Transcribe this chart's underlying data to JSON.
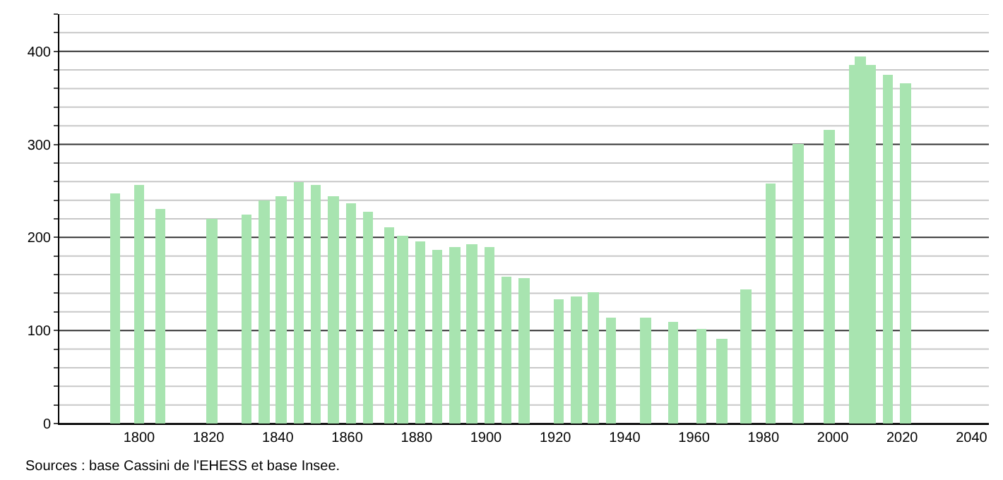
{
  "chart_data": {
    "type": "bar",
    "x": [
      1793,
      1800,
      1806,
      1821,
      1831,
      1836,
      1841,
      1846,
      1851,
      1856,
      1861,
      1866,
      1872,
      1876,
      1881,
      1886,
      1891,
      1896,
      1901,
      1906,
      1911,
      1921,
      1926,
      1931,
      1936,
      1946,
      1954,
      1962,
      1968,
      1975,
      1982,
      1990,
      1999,
      2006,
      2008,
      2011,
      2016,
      2021
    ],
    "values": [
      248,
      256,
      231,
      220,
      225,
      239,
      245,
      260,
      257,
      245,
      236,
      227,
      211,
      202,
      196,
      187,
      189,
      193,
      190,
      158,
      156,
      134,
      137,
      141,
      114,
      114,
      109,
      102,
      91,
      144,
      258,
      300,
      316,
      385,
      395,
      385,
      375,
      366
    ],
    "color": "#a8e4b0",
    "xlim": [
      1777,
      2045
    ],
    "xticks": [
      1800,
      1820,
      1840,
      1860,
      1880,
      1900,
      1920,
      1940,
      1960,
      1980,
      2000,
      2020,
      2040
    ],
    "ylim": [
      0,
      440
    ],
    "yticks": [
      0,
      {
        "value": 20,
        "label": null
      },
      {
        "value": 40,
        "label": null
      },
      {
        "value": 60,
        "label": null
      },
      {
        "value": 80,
        "label": null
      },
      100,
      {
        "value": 120,
        "label": null
      },
      {
        "value": 140,
        "label": null
      },
      {
        "value": 160,
        "label": null
      },
      {
        "value": 180,
        "label": null
      },
      200,
      {
        "value": 220,
        "label": null
      },
      {
        "value": 240,
        "label": null
      },
      {
        "value": 260,
        "label": null
      },
      {
        "value": 280,
        "label": null
      },
      300,
      {
        "value": 320,
        "label": null
      },
      {
        "value": 340,
        "label": null
      },
      {
        "value": 360,
        "label": null
      },
      {
        "value": 380,
        "label": null
      },
      400,
      {
        "value": 420,
        "label": null
      },
      {
        "value": 440,
        "label": null
      }
    ],
    "grid": "y",
    "annotations": [
      "Sources : base Cassini de l'EHESS et base Insee."
    ]
  }
}
